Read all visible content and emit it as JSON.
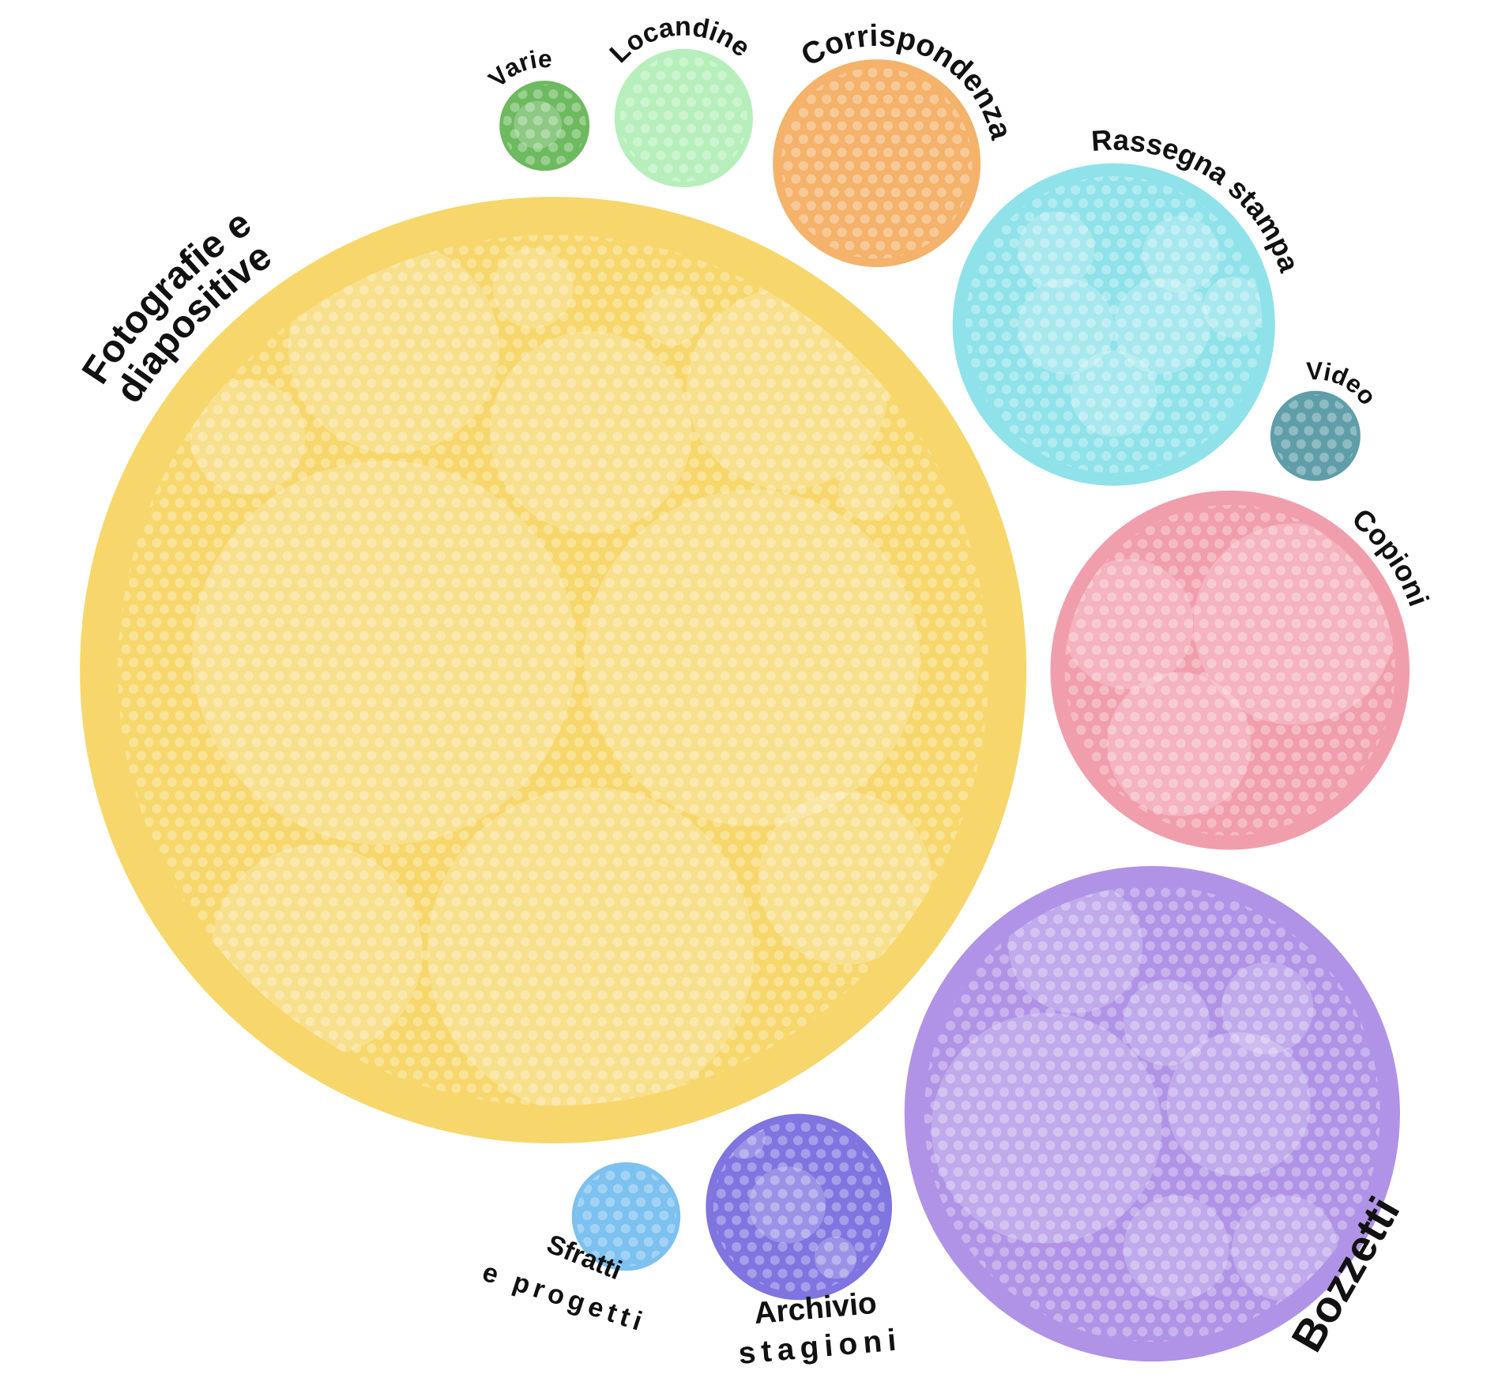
{
  "chart_data": {
    "type": "pack",
    "labels": [
      [
        "Fotografie e",
        "diapositive"
      ],
      [
        "Bozzetti"
      ],
      [
        "Copioni"
      ],
      [
        "Rassegna stampa"
      ],
      [
        "Corrispondenza"
      ],
      [
        "Locandine"
      ],
      [
        "Varie"
      ],
      [
        "Video"
      ],
      [
        "Archivio",
        "stagioni"
      ],
      [
        "Sfratti",
        "e progetti"
      ]
    ],
    "values": [
      2430,
      666,
      350,
      282,
      117,
      52,
      22,
      22,
      94,
      32
    ],
    "colors": [
      "#f7d76b",
      "#b093e6",
      "#f19eac",
      "#8fe2ea",
      "#f4b26a",
      "#b6efbb",
      "#6dba5f",
      "#5f9ea9",
      "#7f74e0",
      "#7cc1ef"
    ]
  }
}
